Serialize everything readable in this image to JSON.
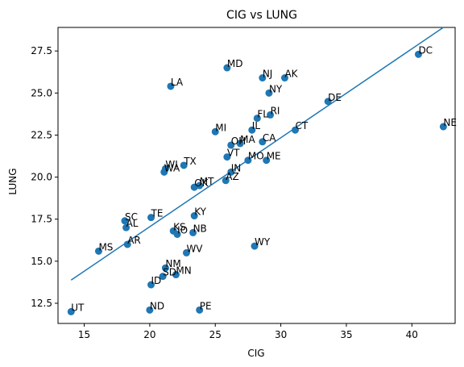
{
  "chart_data": {
    "type": "scatter",
    "title": "CIG vs LUNG",
    "xlabel": "CIG",
    "ylabel": "LUNG",
    "xlim": [
      13.0,
      43.3
    ],
    "ylim": [
      11.3,
      28.9
    ],
    "xticks": [
      15,
      20,
      25,
      30,
      35,
      40
    ],
    "yticks": [
      12.5,
      15.0,
      17.5,
      20.0,
      22.5,
      25.0,
      27.5
    ],
    "ytick_labels": [
      "12.5",
      "15.0",
      "17.5",
      "20.0",
      "22.5",
      "25.0",
      "27.5"
    ],
    "grid": false,
    "point_color": "#1f77b4",
    "trend_color": "#1f77b4",
    "trendline": {
      "slope": 0.529,
      "intercept": 6.47
    },
    "points": [
      {
        "label": "UT",
        "x": 14.0,
        "y": 12.0
      },
      {
        "label": "MS",
        "x": 16.1,
        "y": 15.6
      },
      {
        "label": "SC",
        "x": 18.1,
        "y": 17.4
      },
      {
        "label": "AL",
        "x": 18.2,
        "y": 17.0
      },
      {
        "label": "AR",
        "x": 18.3,
        "y": 16.0
      },
      {
        "label": "ND",
        "x": 20.0,
        "y": 12.1
      },
      {
        "label": "ID",
        "x": 20.1,
        "y": 13.6
      },
      {
        "label": "TE",
        "x": 20.1,
        "y": 17.6
      },
      {
        "label": "SD",
        "x": 21.0,
        "y": 14.1
      },
      {
        "label": "NM",
        "x": 21.2,
        "y": 14.6
      },
      {
        "label": "WI",
        "x": 21.2,
        "y": 20.5
      },
      {
        "label": "WA",
        "x": 21.1,
        "y": 20.3
      },
      {
        "label": "LA",
        "x": 21.6,
        "y": 25.4
      },
      {
        "label": "KS",
        "x": 21.8,
        "y": 16.8
      },
      {
        "label": "IO",
        "x": 22.1,
        "y": 16.6
      },
      {
        "label": "MN",
        "x": 22.0,
        "y": 14.2
      },
      {
        "label": "TX",
        "x": 22.6,
        "y": 20.7
      },
      {
        "label": "WV",
        "x": 22.8,
        "y": 15.5
      },
      {
        "label": "NB",
        "x": 23.3,
        "y": 16.7
      },
      {
        "label": "KY",
        "x": 23.4,
        "y": 17.7
      },
      {
        "label": "OK",
        "x": 23.4,
        "y": 19.4
      },
      {
        "label": "MT",
        "x": 23.8,
        "y": 19.5
      },
      {
        "label": "MI",
        "x": 25.0,
        "y": 22.7
      },
      {
        "label": "AZ",
        "x": 25.8,
        "y": 19.8
      },
      {
        "label": "IN",
        "x": 26.2,
        "y": 20.3
      },
      {
        "label": "VT",
        "x": 25.9,
        "y": 21.2
      },
      {
        "label": "MD",
        "x": 25.9,
        "y": 26.5
      },
      {
        "label": "OH",
        "x": 26.2,
        "y": 21.9
      },
      {
        "label": "PE",
        "x": 23.8,
        "y": 12.1
      },
      {
        "label": "MA",
        "x": 26.9,
        "y": 22.0
      },
      {
        "label": "MO",
        "x": 27.5,
        "y": 21.0
      },
      {
        "label": "IL",
        "x": 27.8,
        "y": 22.8
      },
      {
        "label": "WY",
        "x": 28.0,
        "y": 15.9
      },
      {
        "label": "FL",
        "x": 28.2,
        "y": 23.5
      },
      {
        "label": "CA",
        "x": 28.6,
        "y": 22.1
      },
      {
        "label": "NJ",
        "x": 28.6,
        "y": 25.9
      },
      {
        "label": "ME",
        "x": 28.9,
        "y": 21.0
      },
      {
        "label": "RI",
        "x": 29.2,
        "y": 23.7
      },
      {
        "label": "NY",
        "x": 29.1,
        "y": 25.0
      },
      {
        "label": "AK",
        "x": 30.3,
        "y": 25.9
      },
      {
        "label": "CT",
        "x": 31.1,
        "y": 22.8
      },
      {
        "label": "DE",
        "x": 33.6,
        "y": 24.5
      },
      {
        "label": "DC",
        "x": 40.5,
        "y": 27.3
      },
      {
        "label": "NE",
        "x": 42.4,
        "y": 23.0
      }
    ]
  }
}
